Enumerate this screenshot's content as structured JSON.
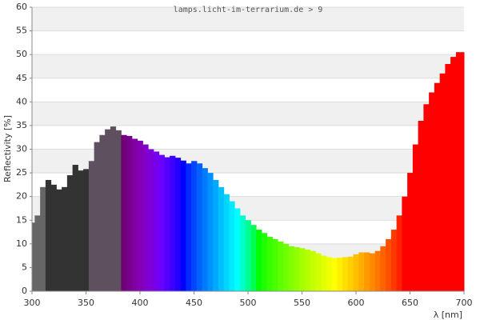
{
  "chart_data": {
    "type": "spectrum",
    "title": "lamps.licht-im-terrarium.de > 9",
    "x_label": "λ [nm]",
    "y_label": "Reflectivity [%]",
    "x": [
      300,
      305,
      310,
      315,
      320,
      325,
      330,
      335,
      340,
      345,
      350,
      355,
      360,
      365,
      370,
      375,
      380,
      385,
      390,
      395,
      400,
      405,
      410,
      415,
      420,
      425,
      430,
      435,
      440,
      445,
      450,
      455,
      460,
      465,
      470,
      475,
      480,
      485,
      490,
      495,
      500,
      505,
      510,
      515,
      520,
      525,
      530,
      535,
      540,
      545,
      550,
      555,
      560,
      565,
      570,
      575,
      580,
      585,
      590,
      595,
      600,
      605,
      610,
      615,
      620,
      625,
      630,
      635,
      640,
      645,
      650,
      655,
      660,
      665,
      670,
      675,
      680,
      685,
      690,
      695,
      700
    ],
    "values": [
      14.5,
      16,
      22,
      23.5,
      22.5,
      21.5,
      22,
      24.5,
      26.7,
      25.5,
      25.8,
      27.5,
      31.5,
      33,
      34.2,
      34.8,
      34,
      33,
      32.8,
      32.2,
      31.8,
      31,
      30,
      29.5,
      28.8,
      28.3,
      28.6,
      28.2,
      27.6,
      27,
      27.5,
      27,
      26,
      25,
      23.5,
      22,
      20.5,
      19,
      17.5,
      16,
      15,
      14,
      13,
      12.3,
      11.5,
      11,
      10.5,
      10,
      9.5,
      9.3,
      9.1,
      8.8,
      8.5,
      8,
      7.5,
      7.2,
      7,
      7.1,
      7.2,
      7.3,
      7.8,
      8.2,
      8.2,
      8,
      8.5,
      9.5,
      11,
      13,
      16,
      20,
      25,
      31,
      36,
      39.5,
      42,
      44,
      46,
      48,
      49.5,
      50.5,
      50.5
    ],
    "uv_bands": [
      {
        "from": 300,
        "to": 315,
        "color": "#666666"
      },
      {
        "from": 315,
        "to": 352,
        "color": "#333333"
      },
      {
        "from": 352,
        "to": 381,
        "color": "#5f5060"
      }
    ],
    "xlim": [
      300,
      700
    ],
    "ylim": [
      0,
      60
    ],
    "xticks": [
      300,
      350,
      400,
      450,
      500,
      550,
      600,
      650,
      700
    ],
    "yticks": [
      0,
      5,
      10,
      15,
      20,
      25,
      30,
      35,
      40,
      45,
      50,
      55,
      60
    ],
    "grid": true
  }
}
